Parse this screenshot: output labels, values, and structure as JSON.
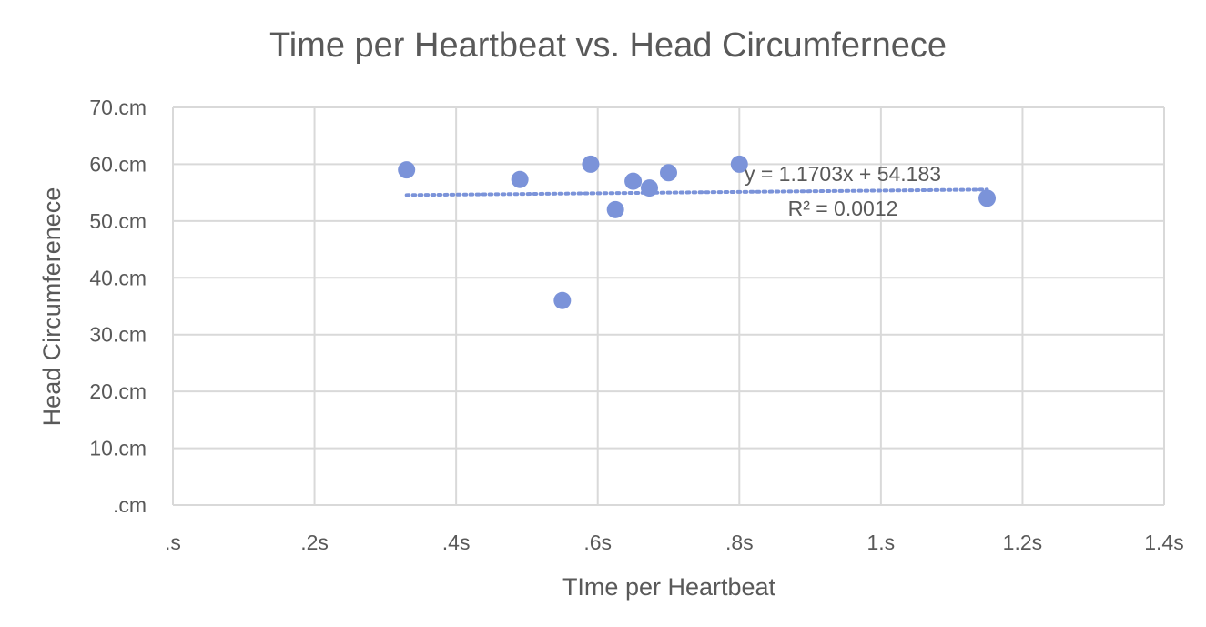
{
  "chart_data": {
    "type": "scatter",
    "title": "Time per Heartbeat vs. Head Circumfernece",
    "xlabel": "TIme per Heartbeat",
    "ylabel": "Head Circumferenece",
    "xlim": [
      0,
      1.4
    ],
    "ylim": [
      0,
      70
    ],
    "x_ticks": [
      0,
      0.2,
      0.4,
      0.6,
      0.8,
      1.0,
      1.2,
      1.4
    ],
    "x_tick_labels": [
      ".s",
      ".2s",
      ".4s",
      ".6s",
      ".8s",
      "1.s",
      "1.2s",
      "1.4s"
    ],
    "y_ticks": [
      0,
      10,
      20,
      30,
      40,
      50,
      60,
      70
    ],
    "y_tick_labels": [
      ".cm",
      "10.cm",
      "20.cm",
      "30.cm",
      "40.cm",
      "50.cm",
      "60.cm",
      "70.cm"
    ],
    "grid": true,
    "legend": "none",
    "marker_color": "#7b93d9",
    "trendline_color": "#7b93d9",
    "series": [
      {
        "points": [
          {
            "x": 0.33,
            "y": 59
          },
          {
            "x": 0.49,
            "y": 57.3
          },
          {
            "x": 0.55,
            "y": 36
          },
          {
            "x": 0.59,
            "y": 60
          },
          {
            "x": 0.625,
            "y": 52
          },
          {
            "x": 0.65,
            "y": 57
          },
          {
            "x": 0.673,
            "y": 55.8
          },
          {
            "x": 0.7,
            "y": 58.5
          },
          {
            "x": 0.8,
            "y": 60
          },
          {
            "x": 1.15,
            "y": 54
          }
        ]
      }
    ],
    "trendline": {
      "type": "linear",
      "slope": 1.1703,
      "intercept": 54.183,
      "x_range": [
        0.33,
        1.15
      ],
      "equation_label": "y = 1.1703x + 54.183",
      "r2_label": "R² = 0.0012"
    }
  }
}
